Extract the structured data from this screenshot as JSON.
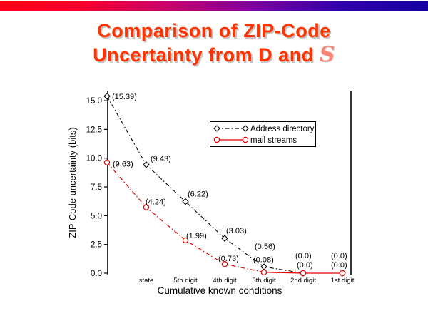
{
  "header": {
    "title_line1": "Comparison of ZIP-Code",
    "title_line2_prefix": "Uncertainty from D and ",
    "title_symbol": "S",
    "title_color": "#ff3300",
    "symbol_color": "#ff8373",
    "gradient_bar_colors": [
      "#ff0013",
      "#f3002e",
      "#c4006e",
      "#7a00a0",
      "#2e00a8",
      "#1500a0"
    ]
  },
  "chart_data": {
    "type": "line",
    "title": "",
    "xlabel": "Cumulative known conditions",
    "ylabel": "ZIP-Code uncertainty (bits)",
    "x_categories": [
      "state",
      "5th digit",
      "4th digit",
      "3th digit",
      "2nd digit",
      "1st digit"
    ],
    "y_ticks": [
      "0.0",
      "2.5",
      "5.0",
      "7.5",
      "10.0",
      "12.5",
      "15.0"
    ],
    "ylim": [
      0,
      15.75
    ],
    "grid": false,
    "legend_position": "upper-right",
    "note_first_point_unlabeled_on_x": true,
    "series": [
      {
        "name": "Address directory",
        "color": "#000000",
        "marker": "diamond",
        "line_style": "dash-dot",
        "values": [
          15.39,
          9.43,
          6.22,
          3.03,
          0.56,
          0.0,
          0.0
        ],
        "point_labels": [
          "(15.39)",
          "(9.43)",
          "(6.22)",
          "(3.03)",
          "(0.56)",
          "(0.0)",
          "(0.0)"
        ]
      },
      {
        "name": "mail streams",
        "color": "#e00000",
        "marker": "circle",
        "line_style": "dash-dot",
        "values": [
          9.63,
          4.24,
          1.99,
          0.73,
          0.08,
          0.0,
          0.0
        ],
        "point_labels": [
          "(9.63)",
          "(4.24)",
          "(1.99)",
          "(0.73)",
          "(0.08)",
          "(0.0)",
          "(0.0)"
        ]
      }
    ]
  }
}
